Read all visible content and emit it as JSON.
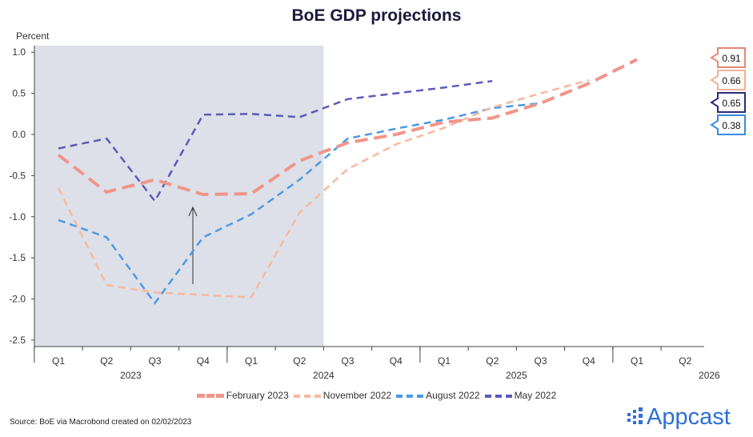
{
  "chart_data": {
    "type": "line",
    "title": "BoE GDP projections",
    "ylabel": "Percent",
    "ylim": [
      -2.6,
      1.05
    ],
    "yticks": [
      "1.0",
      "0.5",
      "0.0",
      "-0.5",
      "-1.0",
      "-1.5",
      "-2.0",
      "-2.5"
    ],
    "ytick_values": [
      1.0,
      0.5,
      0.0,
      -0.5,
      -1.0,
      -1.5,
      -2.0,
      -2.5
    ],
    "categories": [
      "Q1",
      "Q2",
      "Q3",
      "Q4",
      "Q1",
      "Q2",
      "Q3",
      "Q4",
      "Q1",
      "Q2",
      "Q3",
      "Q4",
      "Q1",
      "Q2"
    ],
    "years": [
      {
        "label": "2023",
        "start": 0
      },
      {
        "label": "2024",
        "start": 4
      },
      {
        "label": "2025",
        "start": 8
      },
      {
        "label": "2026",
        "start": 12
      }
    ],
    "shaded_until_index": 5.5,
    "series": [
      {
        "name": "February 2023",
        "color": "#f0958a",
        "width": 4,
        "values": [
          -0.25,
          -0.7,
          -0.55,
          -0.73,
          -0.72,
          -0.32,
          -0.1,
          0.0,
          0.15,
          0.2,
          0.38,
          0.62,
          0.91,
          null
        ],
        "end_label": "0.91"
      },
      {
        "name": "November 2022",
        "color": "#f7b89e",
        "width": 2.5,
        "values": [
          -0.65,
          -1.83,
          -1.92,
          -1.95,
          -1.98,
          -0.95,
          -0.42,
          -0.12,
          0.08,
          0.33,
          0.5,
          0.66,
          null,
          null
        ],
        "end_label": "0.66"
      },
      {
        "name": "August 2022",
        "color": "#4b9ae6",
        "width": 2.5,
        "values": [
          -1.04,
          -1.25,
          -2.05,
          -1.25,
          -0.97,
          -0.55,
          -0.05,
          0.07,
          0.18,
          0.32,
          0.38,
          null,
          null,
          null
        ],
        "end_label": "0.38"
      },
      {
        "name": "May 2022",
        "color": "#5b5bb8",
        "width": 2.5,
        "values": [
          -0.17,
          -0.05,
          -0.81,
          0.24,
          0.25,
          0.21,
          0.43,
          0.5,
          0.57,
          0.65,
          null,
          null,
          null,
          null
        ],
        "end_label": "0.65"
      }
    ],
    "label_order": [
      0,
      1,
      3,
      2
    ],
    "label_border_colors": [
      "#e58777",
      "#f2b196",
      "#2a2a7a",
      "#3a8ae0"
    ],
    "legend": "bottom"
  },
  "source": "Source: BoE via Macrobond created on 02/02/2023",
  "logo": "Appcast"
}
